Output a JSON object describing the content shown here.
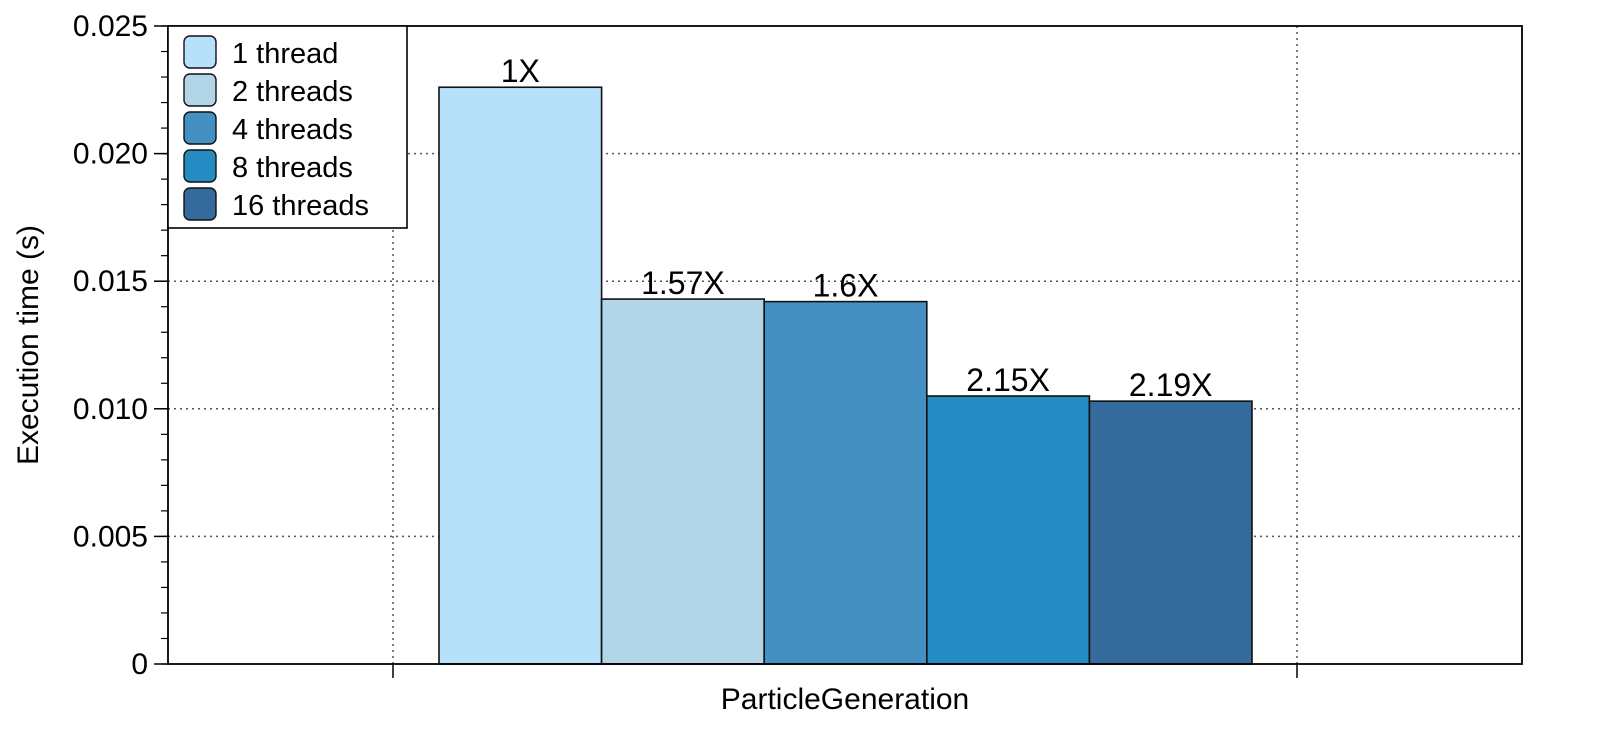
{
  "chart_data": {
    "type": "bar",
    "title": "",
    "xlabel": "",
    "ylabel": "Execution time (s)",
    "categories": [
      "ParticleGeneration"
    ],
    "ylim": [
      0,
      0.025
    ],
    "yticks": [
      "0",
      "0.005",
      "0.010",
      "0.015",
      "0.020",
      "0.025"
    ],
    "grid": true,
    "legend_position": "top-left",
    "series": [
      {
        "name": "1 thread",
        "values": [
          0.0226
        ],
        "color": "#b7e0fb",
        "label": "1X"
      },
      {
        "name": "2 threads",
        "values": [
          0.0143
        ],
        "color": "#b3d5e8",
        "label": "1.57X"
      },
      {
        "name": "4 threads",
        "values": [
          0.0142
        ],
        "color": "#4590c3",
        "label": "1.6X"
      },
      {
        "name": "8 threads",
        "values": [
          0.0105
        ],
        "color": "#248cc2",
        "label": "2.15X"
      },
      {
        "name": "16 threads",
        "values": [
          0.0103
        ],
        "color": "#346b9c",
        "label": "2.19X"
      }
    ]
  }
}
